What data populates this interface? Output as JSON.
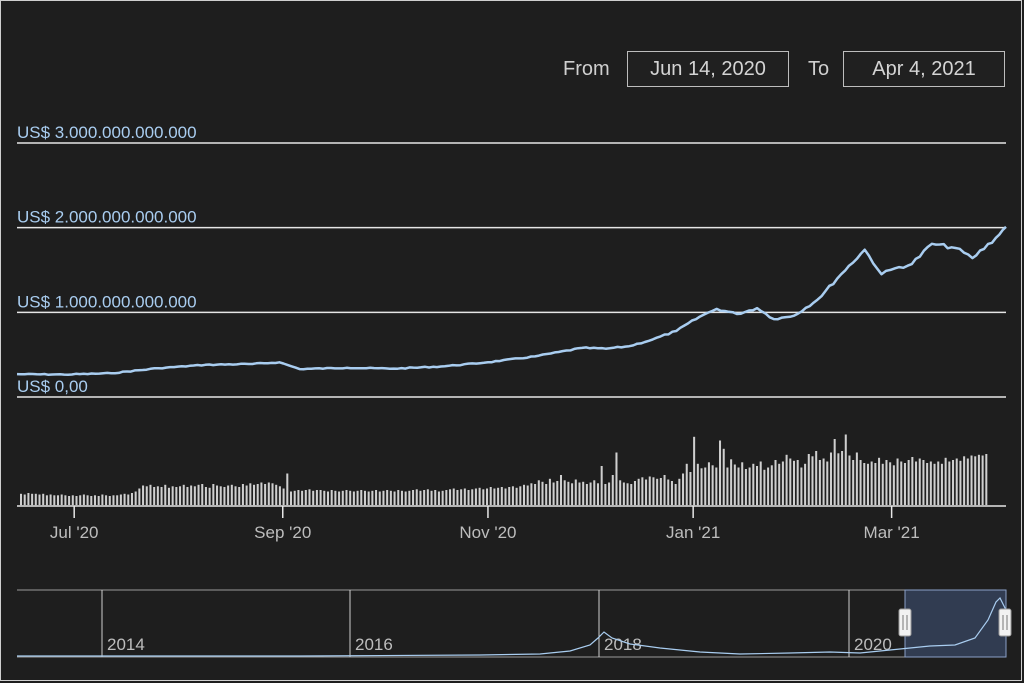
{
  "range_selector": {
    "from_label": "From",
    "from_value": "Jun 14, 2020",
    "to_label": "To",
    "to_value": "Apr 4, 2021"
  },
  "colors": {
    "background": "#1e1e1e",
    "line": "#a9cdf0",
    "grid": "#e6e6e6",
    "volume": "#cfcfcf",
    "navigator_window": "#35425a"
  },
  "chart_data": {
    "type": "line",
    "y_axis": {
      "ylim": [
        0,
        3000000000000
      ],
      "ticks": [
        0,
        1000000000000,
        2000000000000,
        3000000000000
      ],
      "tick_labels": [
        "US$ 0,00",
        "US$ 1.000.000.000.000",
        "US$ 2.000.000.000.000",
        "US$ 3.000.000.000.000"
      ]
    },
    "x_axis": {
      "range": [
        "2020-06-14",
        "2021-04-04"
      ],
      "ticks": [
        "2020-07-01",
        "2020-09-01",
        "2020-11-01",
        "2021-01-01",
        "2021-03-01"
      ],
      "tick_labels": [
        "Jul '20",
        "Sep '20",
        "Nov '20",
        "Jan '21",
        "Mar '21"
      ]
    },
    "series": [
      {
        "x": [
          "2020-06-14",
          "2020-06-28",
          "2020-07-12",
          "2020-07-26",
          "2020-08-09",
          "2020-08-23",
          "2020-08-31",
          "2020-09-06",
          "2020-09-20",
          "2020-10-04",
          "2020-10-18",
          "2020-11-01",
          "2020-11-15",
          "2020-11-29",
          "2020-12-06",
          "2020-12-13",
          "2020-12-20",
          "2020-12-27",
          "2021-01-03",
          "2021-01-08",
          "2021-01-14",
          "2021-01-20",
          "2021-01-25",
          "2021-01-31",
          "2021-02-07",
          "2021-02-14",
          "2021-02-21",
          "2021-02-26",
          "2021-03-02",
          "2021-03-07",
          "2021-03-13",
          "2021-03-20",
          "2021-03-25",
          "2021-04-01",
          "2021-04-04"
        ],
        "y": [
          270000000000,
          265000000000,
          280000000000,
          340000000000,
          380000000000,
          390000000000,
          410000000000,
          330000000000,
          345000000000,
          335000000000,
          360000000000,
          410000000000,
          480000000000,
          580000000000,
          570000000000,
          600000000000,
          680000000000,
          780000000000,
          950000000000,
          1040000000000,
          980000000000,
          1050000000000,
          920000000000,
          960000000000,
          1150000000000,
          1450000000000,
          1740000000000,
          1450000000000,
          1520000000000,
          1570000000000,
          1810000000000,
          1760000000000,
          1640000000000,
          1880000000000,
          2010000000000
        ]
      }
    ],
    "volume": {
      "x_range": [
        "2020-06-14",
        "2021-04-04"
      ],
      "values": [
        0.15,
        0.14,
        0.16,
        0.15,
        0.15,
        0.14,
        0.15,
        0.13,
        0.14,
        0.13,
        0.13,
        0.14,
        0.13,
        0.12,
        0.13,
        0.12,
        0.13,
        0.14,
        0.13,
        0.12,
        0.13,
        0.12,
        0.14,
        0.13,
        0.12,
        0.13,
        0.13,
        0.14,
        0.15,
        0.14,
        0.16,
        0.18,
        0.22,
        0.26,
        0.25,
        0.27,
        0.24,
        0.25,
        0.24,
        0.27,
        0.23,
        0.25,
        0.24,
        0.25,
        0.27,
        0.24,
        0.26,
        0.25,
        0.27,
        0.28,
        0.24,
        0.23,
        0.28,
        0.26,
        0.25,
        0.24,
        0.26,
        0.27,
        0.25,
        0.24,
        0.28,
        0.26,
        0.29,
        0.27,
        0.28,
        0.3,
        0.28,
        0.3,
        0.29,
        0.27,
        0.25,
        0.22,
        0.42,
        0.18,
        0.19,
        0.2,
        0.19,
        0.2,
        0.21,
        0.19,
        0.2,
        0.2,
        0.19,
        0.18,
        0.2,
        0.19,
        0.18,
        0.19,
        0.2,
        0.19,
        0.18,
        0.19,
        0.2,
        0.19,
        0.18,
        0.19,
        0.2,
        0.18,
        0.19,
        0.2,
        0.19,
        0.18,
        0.2,
        0.19,
        0.18,
        0.19,
        0.2,
        0.21,
        0.19,
        0.2,
        0.21,
        0.19,
        0.2,
        0.18,
        0.19,
        0.2,
        0.21,
        0.22,
        0.2,
        0.21,
        0.22,
        0.2,
        0.21,
        0.22,
        0.23,
        0.21,
        0.22,
        0.24,
        0.22,
        0.23,
        0.24,
        0.22,
        0.24,
        0.25,
        0.23,
        0.25,
        0.27,
        0.26,
        0.29,
        0.28,
        0.33,
        0.31,
        0.28,
        0.35,
        0.3,
        0.32,
        0.4,
        0.33,
        0.31,
        0.29,
        0.34,
        0.3,
        0.31,
        0.28,
        0.3,
        0.33,
        0.29,
        0.52,
        0.28,
        0.3,
        0.4,
        0.7,
        0.33,
        0.3,
        0.29,
        0.28,
        0.32,
        0.35,
        0.37,
        0.34,
        0.38,
        0.37,
        0.35,
        0.36,
        0.4,
        0.34,
        0.32,
        0.28,
        0.35,
        0.42,
        0.55,
        0.44,
        0.91,
        0.55,
        0.49,
        0.5,
        0.57,
        0.53,
        0.5,
        0.86,
        0.75,
        0.5,
        0.61,
        0.54,
        0.5,
        0.57,
        0.48,
        0.5,
        0.55,
        0.52,
        0.58,
        0.47,
        0.5,
        0.53,
        0.6,
        0.55,
        0.58,
        0.67,
        0.62,
        0.59,
        0.6,
        0.5,
        0.55,
        0.68,
        0.65,
        0.72,
        0.6,
        0.62,
        0.58,
        0.7,
        0.88,
        0.69,
        0.72,
        0.94,
        0.66,
        0.6,
        0.7,
        0.6,
        0.56,
        0.55,
        0.58,
        0.56,
        0.63,
        0.55,
        0.6,
        0.57,
        0.53,
        0.62,
        0.58,
        0.56,
        0.6,
        0.64,
        0.58,
        0.62,
        0.6,
        0.56,
        0.58,
        0.55,
        0.58,
        0.55,
        0.63,
        0.58,
        0.6,
        0.62,
        0.59,
        0.65,
        0.62,
        0.66,
        0.65,
        0.67,
        0.66,
        0.68
      ]
    },
    "navigator": {
      "tick_labels": [
        "2014",
        "2016",
        "2018",
        "2020"
      ],
      "selected_window": [
        "2020-06-14",
        "2021-04-04"
      ]
    }
  }
}
